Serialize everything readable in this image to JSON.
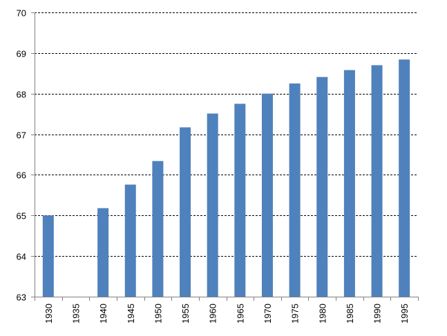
{
  "chart_data": {
    "type": "bar",
    "title": "",
    "xlabel": "",
    "ylabel": "",
    "categories": [
      "1930",
      "1935",
      "1940",
      "1945",
      "1950",
      "1955",
      "1960",
      "1965",
      "1970",
      "1975",
      "1980",
      "1985",
      "1990",
      "1995"
    ],
    "values": [
      65.0,
      63.0,
      65.18,
      65.76,
      66.34,
      67.17,
      67.51,
      67.75,
      68.0,
      68.25,
      68.41,
      68.58,
      68.7,
      68.84
    ],
    "ylim": [
      63,
      70
    ],
    "yticks": [
      "63",
      "64",
      "65",
      "66",
      "67",
      "68",
      "69",
      "70"
    ],
    "grid": true,
    "grid_style": "dashed",
    "legend": "none",
    "bar_color": "#4f81bd",
    "grid_color": "#000000"
  }
}
